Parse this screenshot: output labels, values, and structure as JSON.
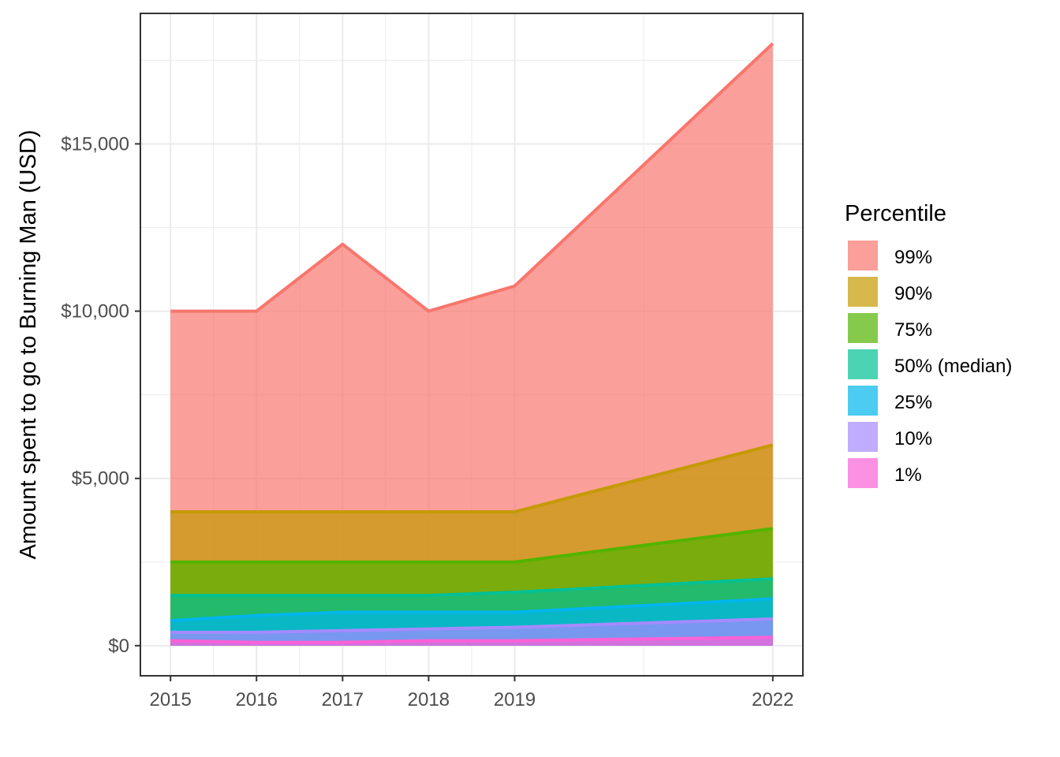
{
  "chart_data": {
    "type": "area",
    "title": "",
    "xlabel": "",
    "ylabel": "Amount spent to go to Burning Man (USD)",
    "x": [
      2015,
      2016,
      2017,
      2018,
      2019,
      2022
    ],
    "x_tick_labels": [
      "2015",
      "2016",
      "2017",
      "2018",
      "2019",
      "2022"
    ],
    "xlim": [
      2014.65,
      2022.35
    ],
    "ylim": [
      -900,
      18900
    ],
    "y_ticks": [
      0,
      5000,
      10000,
      15000
    ],
    "y_tick_labels": [
      "$0",
      "$5,000",
      "$10,000",
      "$15,000"
    ],
    "grid": true,
    "legend": {
      "title": "Percentile",
      "position": "right"
    },
    "series": [
      {
        "name": "99%",
        "color": "#F8766D",
        "values": [
          10000,
          10000,
          12000,
          10000,
          10750,
          18000
        ]
      },
      {
        "name": "90%",
        "color": "#C49A00",
        "values": [
          4000,
          4000,
          4000,
          4000,
          4000,
          6000
        ]
      },
      {
        "name": "75%",
        "color": "#53B400",
        "values": [
          2500,
          2500,
          2500,
          2500,
          2500,
          3500
        ]
      },
      {
        "name": "50% (median)",
        "color": "#00C094",
        "values": [
          1500,
          1500,
          1500,
          1500,
          1600,
          2000
        ]
      },
      {
        "name": "25%",
        "color": "#00B6EB",
        "values": [
          750,
          900,
          1000,
          1000,
          1000,
          1400
        ]
      },
      {
        "name": "10%",
        "color": "#A58AFF",
        "values": [
          400,
          400,
          450,
          500,
          550,
          800
        ]
      },
      {
        "name": "1%",
        "color": "#FB61D7",
        "values": [
          150,
          100,
          100,
          150,
          150,
          250
        ]
      }
    ]
  }
}
